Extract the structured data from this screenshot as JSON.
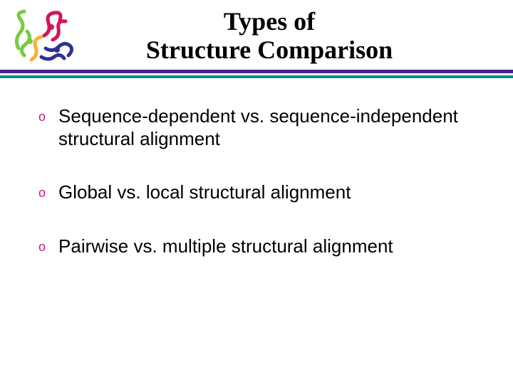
{
  "title": {
    "line1": "Types of",
    "line2": "Structure Comparison",
    "fontsize": 36,
    "color": "#000000"
  },
  "divider": {
    "color1": "#4a1f8c",
    "color2": "#008b8b",
    "height1": 5,
    "height2": 4
  },
  "bullet": {
    "marker": "o",
    "marker_color": "#c71585",
    "marker_fontsize": 18,
    "text_fontsize": 26,
    "text_color": "#000000"
  },
  "items": [
    {
      "text": "Sequence-dependent vs. sequence-independent structural alignment"
    },
    {
      "text": "Global vs. local structural alignment"
    },
    {
      "text": "Pairwise vs. multiple structural alignment"
    }
  ],
  "protein_colors": {
    "green": "#7ac943",
    "red": "#d4145a",
    "blue": "#2e3192",
    "yellow": "#fbb03b"
  }
}
